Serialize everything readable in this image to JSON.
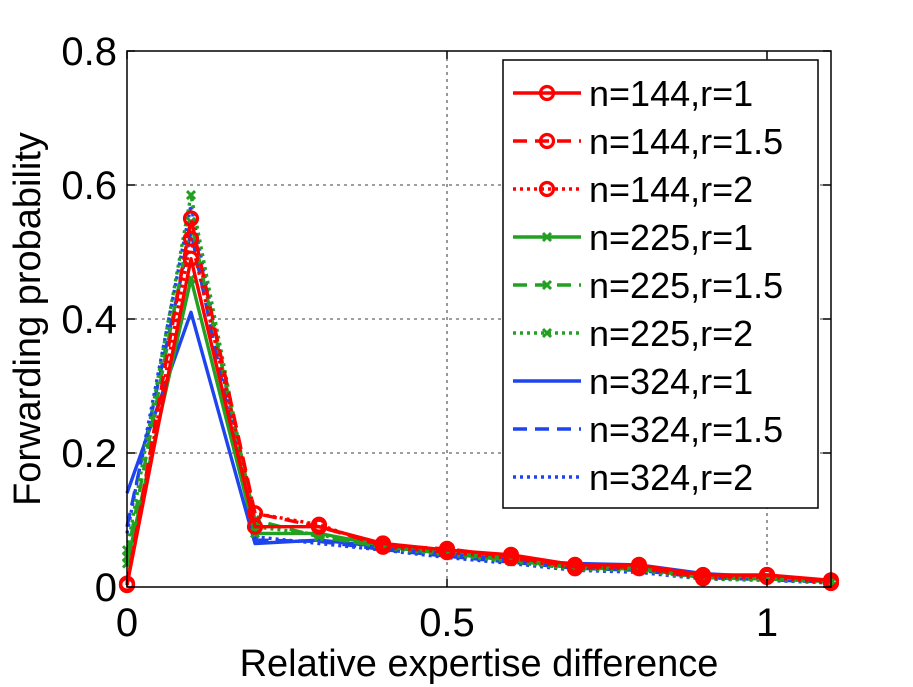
{
  "chart_data": {
    "type": "line",
    "title": "",
    "xlabel": "Relative expertise difference",
    "ylabel": "Forwarding probability",
    "xlim": [
      0,
      1.1
    ],
    "ylim": [
      0,
      0.8
    ],
    "xticks": [
      0,
      0.5,
      1
    ],
    "xtick_labels": [
      "0",
      "0.5",
      "1"
    ],
    "yticks": [
      0,
      0.2,
      0.4,
      0.6,
      0.8
    ],
    "ytick_labels": [
      "0",
      "0.2",
      "0.4",
      "0.6",
      "0.8"
    ],
    "grid": true,
    "legend_position": "top-right",
    "x": [
      0,
      0.1,
      0.2,
      0.3,
      0.4,
      0.5,
      0.6,
      0.7,
      0.8,
      0.9,
      1.0,
      1.1
    ],
    "series": [
      {
        "name": "n=144,r=1",
        "color": "#ff0000",
        "dash": "solid",
        "marker": "circle",
        "values": [
          0.003,
          0.49,
          0.09,
          0.09,
          0.065,
          0.055,
          0.048,
          0.033,
          0.033,
          0.018,
          0.018,
          0.01
        ]
      },
      {
        "name": "n=144,r=1.5",
        "color": "#ff0000",
        "dash": "dashed",
        "marker": "circle",
        "values": [
          0.003,
          0.55,
          0.11,
          0.09,
          0.062,
          0.057,
          0.045,
          0.03,
          0.03,
          0.015,
          0.018,
          0.008
        ]
      },
      {
        "name": "n=144,r=2",
        "color": "#ff0000",
        "dash": "dotted",
        "marker": "circle",
        "values": [
          0.005,
          0.52,
          0.11,
          0.093,
          0.06,
          0.052,
          0.043,
          0.028,
          0.028,
          0.013,
          0.015,
          0.006
        ]
      },
      {
        "name": "n=225,r=1",
        "color": "#22a022",
        "dash": "solid",
        "marker": "x",
        "values": [
          0.035,
          0.46,
          0.08,
          0.08,
          0.062,
          0.055,
          0.045,
          0.032,
          0.03,
          0.017,
          0.015,
          0.01
        ]
      },
      {
        "name": "n=225,r=1.5",
        "color": "#22a022",
        "dash": "dashed",
        "marker": "x",
        "values": [
          0.045,
          0.545,
          0.1,
          0.075,
          0.06,
          0.05,
          0.04,
          0.028,
          0.027,
          0.014,
          0.012,
          0.008
        ]
      },
      {
        "name": "n=225,r=2",
        "color": "#22a022",
        "dash": "dotted",
        "marker": "x",
        "values": [
          0.055,
          0.585,
          0.09,
          0.078,
          0.058,
          0.048,
          0.038,
          0.026,
          0.025,
          0.012,
          0.011,
          0.007
        ]
      },
      {
        "name": "n=324,r=1",
        "color": "#1e44ee",
        "dash": "solid",
        "marker": "none",
        "values": [
          0.14,
          0.41,
          0.065,
          0.07,
          0.06,
          0.05,
          0.04,
          0.035,
          0.033,
          0.02,
          0.015,
          0.01
        ]
      },
      {
        "name": "n=324,r=1.5",
        "color": "#1e44ee",
        "dash": "dashed",
        "marker": "none",
        "values": [
          0.09,
          0.53,
          0.07,
          0.068,
          0.056,
          0.046,
          0.037,
          0.028,
          0.025,
          0.014,
          0.011,
          0.007
        ]
      },
      {
        "name": "n=324,r=2",
        "color": "#1e44ee",
        "dash": "dotted",
        "marker": "none",
        "values": [
          0.08,
          0.57,
          0.075,
          0.065,
          0.055,
          0.044,
          0.035,
          0.025,
          0.022,
          0.012,
          0.01,
          0.006
        ]
      }
    ]
  }
}
